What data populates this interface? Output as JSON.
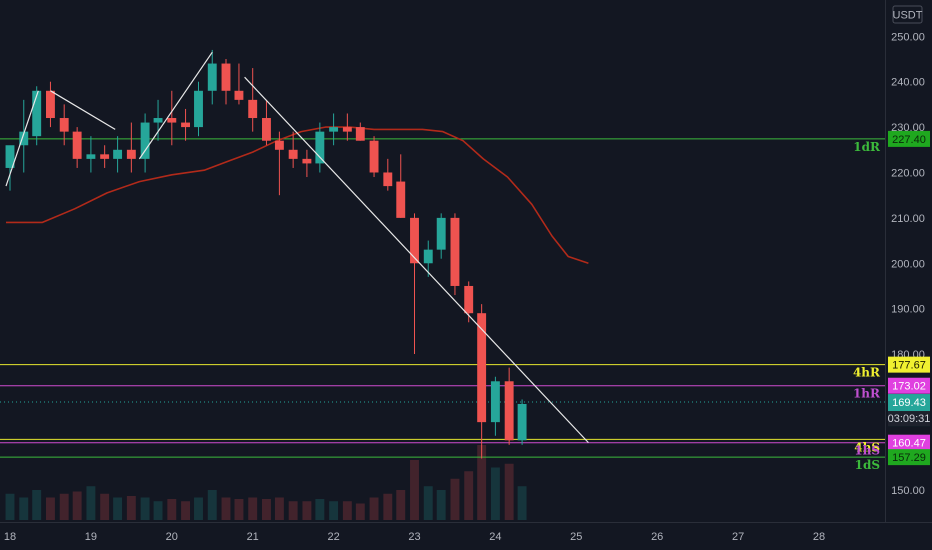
{
  "chart_data": {
    "type": "candlestick",
    "currency": "USDT",
    "y_range": [
      143,
      258
    ],
    "y_ticks": [
      150,
      160,
      170,
      180,
      190,
      200,
      210,
      220,
      230,
      240,
      250
    ],
    "y_tick_labels": [
      "150.00",
      "160.00",
      "170.00",
      "180.00",
      "190.00",
      "200.00",
      "210.00",
      "220.00",
      "230.00",
      "240.00",
      "250.00"
    ],
    "x_range": [
      17.95,
      28.8
    ],
    "x_ticks": [
      18,
      19,
      20,
      21,
      22,
      23,
      24,
      25,
      26,
      27,
      28
    ],
    "x_tick_labels": [
      "18",
      "19",
      "20",
      "21",
      "22",
      "23",
      "24",
      "25",
      "26",
      "27",
      "28"
    ],
    "grid": false,
    "candle_width_days": 0.11,
    "candles": [
      {
        "t": 18.0,
        "o": 221,
        "h": 225,
        "l": 216,
        "c": 226
      },
      {
        "t": 18.17,
        "o": 226,
        "h": 236,
        "l": 220,
        "c": 229
      },
      {
        "t": 18.33,
        "o": 228,
        "h": 239,
        "l": 226,
        "c": 238
      },
      {
        "t": 18.5,
        "o": 238,
        "h": 240,
        "l": 230,
        "c": 232
      },
      {
        "t": 18.67,
        "o": 232,
        "h": 235,
        "l": 226,
        "c": 229
      },
      {
        "t": 18.83,
        "o": 229,
        "h": 230,
        "l": 221,
        "c": 223
      },
      {
        "t": 19.0,
        "o": 223,
        "h": 228,
        "l": 220,
        "c": 224
      },
      {
        "t": 19.17,
        "o": 224,
        "h": 226,
        "l": 221,
        "c": 223
      },
      {
        "t": 19.33,
        "o": 223,
        "h": 228,
        "l": 220,
        "c": 225
      },
      {
        "t": 19.5,
        "o": 225,
        "h": 231,
        "l": 220,
        "c": 223
      },
      {
        "t": 19.67,
        "o": 223,
        "h": 233,
        "l": 220,
        "c": 231
      },
      {
        "t": 19.83,
        "o": 231,
        "h": 236,
        "l": 227,
        "c": 232
      },
      {
        "t": 20.0,
        "o": 232,
        "h": 238,
        "l": 226,
        "c": 231
      },
      {
        "t": 20.17,
        "o": 231,
        "h": 234,
        "l": 227,
        "c": 230
      },
      {
        "t": 20.33,
        "o": 230,
        "h": 240,
        "l": 228,
        "c": 238
      },
      {
        "t": 20.5,
        "o": 238,
        "h": 247,
        "l": 235,
        "c": 244
      },
      {
        "t": 20.67,
        "o": 244,
        "h": 245,
        "l": 235,
        "c": 238
      },
      {
        "t": 20.83,
        "o": 238,
        "h": 244,
        "l": 235,
        "c": 236
      },
      {
        "t": 21.0,
        "o": 236,
        "h": 243,
        "l": 229,
        "c": 232
      },
      {
        "t": 21.17,
        "o": 232,
        "h": 236,
        "l": 226,
        "c": 227
      },
      {
        "t": 21.33,
        "o": 227,
        "h": 229,
        "l": 215,
        "c": 225
      },
      {
        "t": 21.5,
        "o": 225,
        "h": 229,
        "l": 221,
        "c": 223
      },
      {
        "t": 21.67,
        "o": 223,
        "h": 225,
        "l": 219,
        "c": 222
      },
      {
        "t": 21.83,
        "o": 222,
        "h": 231,
        "l": 220,
        "c": 229
      },
      {
        "t": 22.0,
        "o": 229,
        "h": 233,
        "l": 226,
        "c": 230
      },
      {
        "t": 22.17,
        "o": 230,
        "h": 233,
        "l": 227,
        "c": 229
      },
      {
        "t": 22.33,
        "o": 230,
        "h": 231,
        "l": 227,
        "c": 227
      },
      {
        "t": 22.5,
        "o": 227,
        "h": 228,
        "l": 219,
        "c": 220
      },
      {
        "t": 22.67,
        "o": 220,
        "h": 223,
        "l": 216,
        "c": 217
      },
      {
        "t": 22.83,
        "o": 218,
        "h": 224,
        "l": 210,
        "c": 210
      },
      {
        "t": 23.0,
        "o": 210,
        "h": 211,
        "l": 180,
        "c": 200
      },
      {
        "t": 23.17,
        "o": 200,
        "h": 205,
        "l": 197,
        "c": 203
      },
      {
        "t": 23.33,
        "o": 203,
        "h": 211,
        "l": 201,
        "c": 210
      },
      {
        "t": 23.5,
        "o": 210,
        "h": 211,
        "l": 193,
        "c": 195
      },
      {
        "t": 23.67,
        "o": 195,
        "h": 196,
        "l": 187,
        "c": 189
      },
      {
        "t": 23.83,
        "o": 189,
        "h": 191,
        "l": 157,
        "c": 165
      },
      {
        "t": 24.0,
        "o": 165,
        "h": 175,
        "l": 162,
        "c": 174
      },
      {
        "t": 24.17,
        "o": 174,
        "h": 177,
        "l": 160,
        "c": 161
      },
      {
        "t": 24.33,
        "o": 161,
        "h": 170,
        "l": 160,
        "c": 169
      }
    ],
    "moving_average": {
      "color": "#b22a1a",
      "points": [
        [
          17.95,
          209
        ],
        [
          18.4,
          209
        ],
        [
          18.8,
          212
        ],
        [
          19.2,
          215.5
        ],
        [
          19.6,
          218
        ],
        [
          20.0,
          219.5
        ],
        [
          20.4,
          220.5
        ],
        [
          20.7,
          222.5
        ],
        [
          21.0,
          224.5
        ],
        [
          21.3,
          227
        ],
        [
          21.6,
          229
        ],
        [
          21.9,
          230
        ],
        [
          22.2,
          230
        ],
        [
          22.5,
          229.5
        ],
        [
          22.8,
          229.5
        ],
        [
          23.1,
          229.5
        ],
        [
          23.35,
          229
        ],
        [
          23.6,
          227
        ],
        [
          23.85,
          223
        ],
        [
          24.15,
          219
        ],
        [
          24.45,
          213
        ],
        [
          24.7,
          206
        ],
        [
          24.9,
          201.5
        ],
        [
          25.15,
          200
        ]
      ]
    },
    "trend_lines": [
      {
        "color": "#e8e8e8",
        "points": [
          [
            17.95,
            217
          ],
          [
            18.35,
            238
          ]
        ]
      },
      {
        "color": "#e8e8e8",
        "points": [
          [
            18.5,
            238
          ],
          [
            19.3,
            229.5
          ]
        ]
      },
      {
        "color": "#e8e8e8",
        "points": [
          [
            19.6,
            223
          ],
          [
            20.5,
            246.5
          ]
        ]
      },
      {
        "color": "#e8e8e8",
        "points": [
          [
            20.9,
            241
          ],
          [
            25.15,
            160.5
          ]
        ]
      }
    ],
    "volume": {
      "max": 1,
      "bars": [
        {
          "t": 18.0,
          "v": 0.35
        },
        {
          "t": 18.17,
          "v": 0.3
        },
        {
          "t": 18.33,
          "v": 0.4
        },
        {
          "t": 18.5,
          "v": 0.3
        },
        {
          "t": 18.67,
          "v": 0.35
        },
        {
          "t": 18.83,
          "v": 0.38
        },
        {
          "t": 19.0,
          "v": 0.45
        },
        {
          "t": 19.17,
          "v": 0.35
        },
        {
          "t": 19.33,
          "v": 0.3
        },
        {
          "t": 19.5,
          "v": 0.32
        },
        {
          "t": 19.67,
          "v": 0.3
        },
        {
          "t": 19.83,
          "v": 0.25
        },
        {
          "t": 20.0,
          "v": 0.28
        },
        {
          "t": 20.17,
          "v": 0.25
        },
        {
          "t": 20.33,
          "v": 0.3
        },
        {
          "t": 20.5,
          "v": 0.4
        },
        {
          "t": 20.67,
          "v": 0.3
        },
        {
          "t": 20.83,
          "v": 0.28
        },
        {
          "t": 21.0,
          "v": 0.3
        },
        {
          "t": 21.17,
          "v": 0.28
        },
        {
          "t": 21.33,
          "v": 0.3
        },
        {
          "t": 21.5,
          "v": 0.25
        },
        {
          "t": 21.67,
          "v": 0.25
        },
        {
          "t": 21.83,
          "v": 0.28
        },
        {
          "t": 22.0,
          "v": 0.25
        },
        {
          "t": 22.17,
          "v": 0.25
        },
        {
          "t": 22.33,
          "v": 0.22
        },
        {
          "t": 22.5,
          "v": 0.3
        },
        {
          "t": 22.67,
          "v": 0.35
        },
        {
          "t": 22.83,
          "v": 0.4
        },
        {
          "t": 23.0,
          "v": 0.8
        },
        {
          "t": 23.17,
          "v": 0.45
        },
        {
          "t": 23.33,
          "v": 0.4
        },
        {
          "t": 23.5,
          "v": 0.55
        },
        {
          "t": 23.67,
          "v": 0.65
        },
        {
          "t": 23.83,
          "v": 1.0
        },
        {
          "t": 24.0,
          "v": 0.7
        },
        {
          "t": 24.17,
          "v": 0.75
        },
        {
          "t": 24.33,
          "v": 0.45
        }
      ]
    },
    "levels": [
      {
        "name": "1dR",
        "value": 227.4,
        "label": "227.40",
        "color": "#3cba3c",
        "badge_bg": "#1fa81f",
        "badge_text": "#0a2a0a",
        "name_color": "#3cba3c",
        "show_name": true
      },
      {
        "name": "4hR",
        "value": 177.67,
        "label": "177.67",
        "color": "#e6e62e",
        "badge_bg": "#f0f030",
        "badge_text": "#1a1a00",
        "name_color": "#f0f030",
        "show_name": true
      },
      {
        "name": "1hR",
        "value": 173.02,
        "label": "173.02",
        "color": "#d04cd0",
        "badge_bg": "#e040e0",
        "badge_text": "#ffffff",
        "name_color": "#c050d0",
        "show_name": true
      },
      {
        "name": "4hS",
        "value": 161.2,
        "label": "",
        "color": "#e6e62e",
        "badge_bg": "",
        "badge_text": "",
        "name_color": "#f0f030",
        "show_name": true
      },
      {
        "name": "1hS",
        "value": 160.47,
        "label": "160.47",
        "color": "#d04cd0",
        "badge_bg": "#e040e0",
        "badge_text": "#ffffff",
        "name_color": "#c050d0",
        "show_name": true
      },
      {
        "name": "1dS",
        "value": 157.29,
        "label": "157.29",
        "color": "#3cba3c",
        "badge_bg": "#1fa81f",
        "badge_text": "#0a2a0a",
        "name_color": "#3cba3c",
        "show_name": true
      }
    ],
    "current_price": {
      "value": 169.43,
      "label": "169.43",
      "countdown": "03:09:31",
      "color": "#26a69a"
    },
    "colors": {
      "up": "#26a69a",
      "down": "#ef5350",
      "background": "#131722",
      "axis_text": "#b2b5be"
    }
  }
}
